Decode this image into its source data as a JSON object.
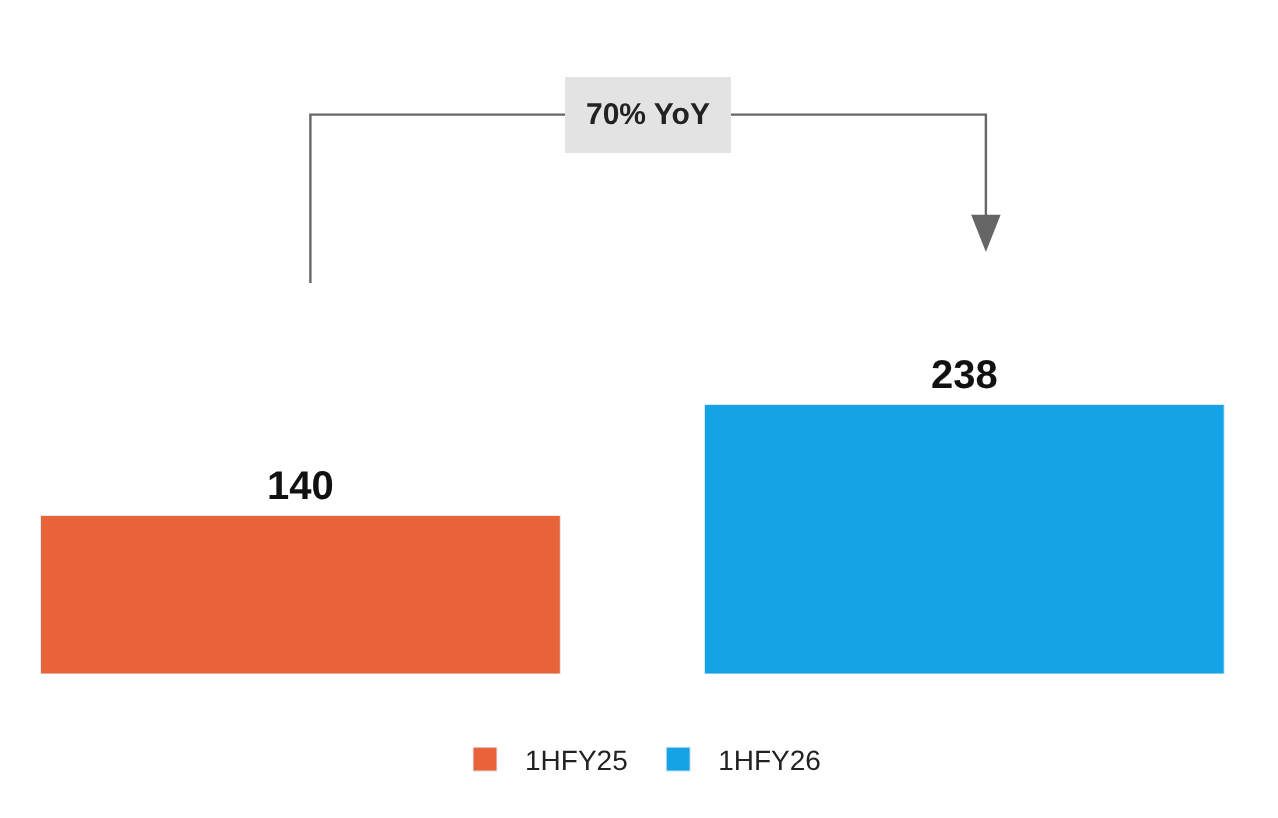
{
  "chart_data": {
    "type": "bar",
    "categories": [
      null
    ],
    "series": [
      {
        "name": "1HFY25",
        "color": "#e8623a",
        "values": [
          140
        ]
      },
      {
        "name": "1HFY26",
        "color": "#14a4e6",
        "values": [
          238
        ]
      }
    ],
    "data_labels": true,
    "legend": "bottom",
    "annotations": [
      "70% YoY"
    ]
  }
}
